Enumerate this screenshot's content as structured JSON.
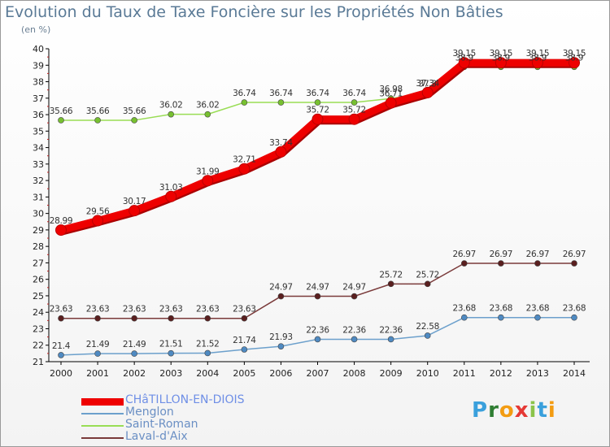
{
  "header": {
    "title": "Evolution du Taux de Taxe Foncière sur les Propriétés Non Bâties",
    "subtitle": "(en %)"
  },
  "logo": {
    "letters": [
      "P",
      "r",
      "o",
      "x",
      "i",
      "t",
      "i"
    ],
    "colors": [
      "#3aa0dc",
      "#2e7d32",
      "#f39c12",
      "#e53935",
      "#8bc34a",
      "#3aa0dc",
      "#f39c12"
    ]
  },
  "chart_data": {
    "type": "line",
    "title": "Evolution du Taux de Taxe Foncière sur les Propriétés Non Bâties",
    "ylabel": "(en %)",
    "xlabel": "",
    "ylim": [
      21,
      40
    ],
    "yticks": [
      21,
      22,
      23,
      24,
      25,
      26,
      27,
      28,
      29,
      30,
      31,
      32,
      33,
      34,
      35,
      36,
      37,
      38,
      39,
      40
    ],
    "categories": [
      "2000",
      "2001",
      "2002",
      "2003",
      "2004",
      "2005",
      "2006",
      "2007",
      "2008",
      "2009",
      "2010",
      "2011",
      "2012",
      "2013",
      "2014"
    ],
    "grid": false,
    "legend_position": "bottom-left",
    "series": [
      {
        "name": "CHâTILLON-EN-DIOIS",
        "color": "#ee0000",
        "marker": "#ee0000",
        "bold": true,
        "values": [
          28.99,
          29.56,
          30.17,
          31.03,
          31.99,
          32.71,
          33.74,
          35.72,
          35.72,
          36.71,
          37.34,
          39.15,
          39.15,
          39.15,
          39.15
        ],
        "labels": [
          "28.99",
          "29.56",
          "30.17",
          "31.03",
          "31.99",
          "32.71",
          "33.74",
          "35.72",
          "35.72",
          "36.71",
          "37.34",
          "39.15",
          "39.15",
          "39.15",
          "39.15"
        ]
      },
      {
        "name": "Menglon",
        "color": "#6ca0cc",
        "marker": "#4f8ac2",
        "bold": false,
        "values": [
          21.4,
          21.49,
          21.49,
          21.51,
          21.52,
          21.74,
          21.93,
          22.36,
          22.36,
          22.36,
          22.58,
          23.68,
          23.68,
          23.68,
          23.68
        ],
        "labels": [
          "21.4",
          "21.49",
          "21.49",
          "21.51",
          "21.52",
          "21.74",
          "21.93",
          "22.36",
          "22.36",
          "22.36",
          "22.58",
          "23.68",
          "23.68",
          "23.68",
          "23.68"
        ]
      },
      {
        "name": "Saint-Roman",
        "color": "#99dd55",
        "marker": "#77c030",
        "bold": false,
        "values": [
          35.66,
          35.66,
          35.66,
          36.02,
          36.02,
          36.74,
          36.74,
          36.74,
          36.74,
          36.98,
          37.3,
          38.9,
          38.9,
          38.9,
          38.9
        ],
        "labels": [
          "35.66",
          "35.66",
          "35.66",
          "36.02",
          "36.02",
          "36.74",
          "36.74",
          "36.74",
          "36.74",
          "36.98",
          "37.3",
          "38.9",
          "38.9",
          "38.9",
          "38.9"
        ]
      },
      {
        "name": "Laval-d'Aix",
        "color": "#7a3a3a",
        "marker": "#5a1f1f",
        "bold": false,
        "values": [
          23.63,
          23.63,
          23.63,
          23.63,
          23.63,
          23.63,
          24.97,
          24.97,
          24.97,
          25.72,
          25.72,
          26.97,
          26.97,
          26.97,
          26.97
        ],
        "labels": [
          "23.63",
          "23.63",
          "23.63",
          "23.63",
          "23.63",
          "23.63",
          "24.97",
          "24.97",
          "24.97",
          "25.72",
          "25.72",
          "26.97",
          "26.97",
          "26.97",
          "26.97"
        ]
      }
    ]
  }
}
